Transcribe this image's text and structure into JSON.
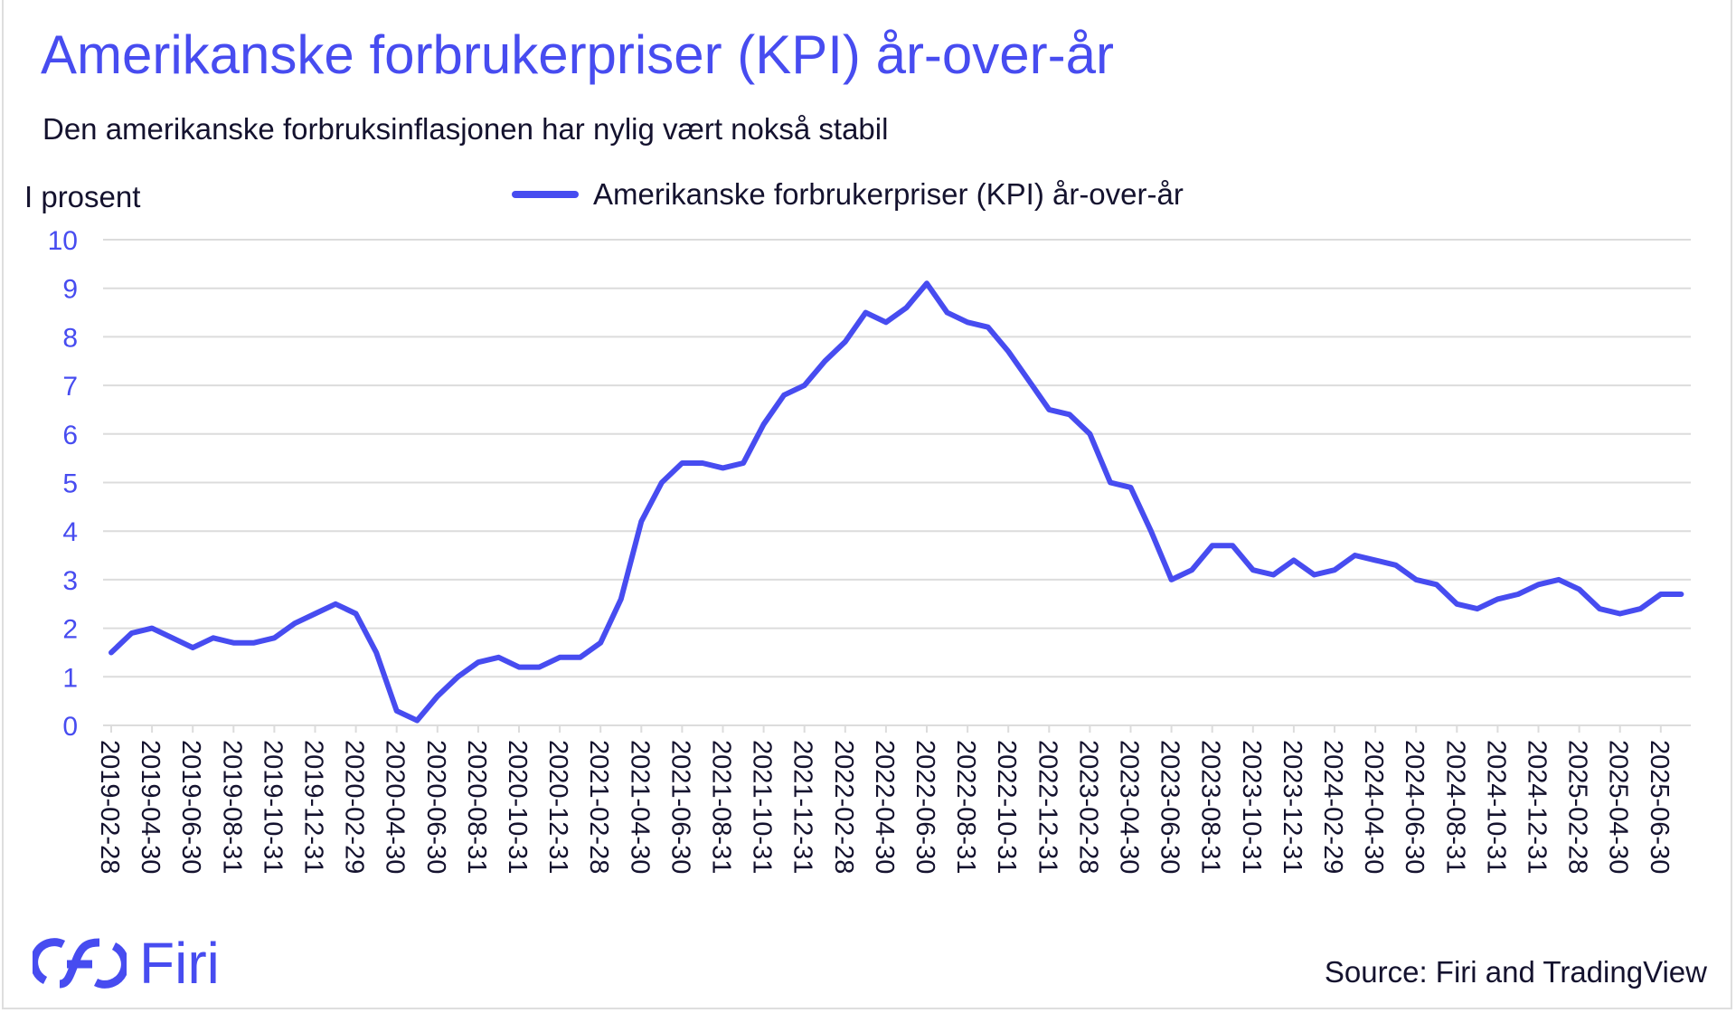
{
  "chart_data": {
    "type": "line",
    "title": "Amerikanske forbrukerpriser (KPI) år-over-år",
    "subtitle": "Den amerikanske forbruksinflasjonen har nylig vært nokså stabil",
    "ylabel": "I prosent",
    "xlabel": "",
    "ylim": [
      0,
      10
    ],
    "yticks": [
      "0",
      "1",
      "2",
      "3",
      "4",
      "5",
      "6",
      "7",
      "8",
      "9",
      "10"
    ],
    "grid": true,
    "legend_placement": "top-center",
    "xtick_labels": [
      "2019-02-28",
      "2019-04-30",
      "2019-06-30",
      "2019-08-31",
      "2019-10-31",
      "2019-12-31",
      "2020-02-29",
      "2020-04-30",
      "2020-06-30",
      "2020-08-31",
      "2020-10-31",
      "2020-12-31",
      "2021-02-28",
      "2021-04-30",
      "2021-06-30",
      "2021-08-31",
      "2021-10-31",
      "2021-12-31",
      "2022-02-28",
      "2022-04-30",
      "2022-06-30",
      "2022-08-31",
      "2022-10-31",
      "2022-12-31",
      "2023-02-28",
      "2023-04-30",
      "2023-06-30",
      "2023-08-31",
      "2023-10-31",
      "2023-12-31",
      "2024-02-29",
      "2024-04-30",
      "2024-06-30",
      "2024-08-31",
      "2024-10-31",
      "2024-12-31",
      "2025-02-28",
      "2025-04-30",
      "2025-06-30"
    ],
    "series": [
      {
        "name": "Amerikanske forbrukerpriser (KPI) år-over-år",
        "color": "#474cf0",
        "values": [
          1.5,
          1.9,
          2.0,
          1.8,
          1.6,
          1.8,
          1.7,
          1.7,
          1.8,
          2.1,
          2.3,
          2.5,
          2.3,
          1.5,
          0.3,
          0.1,
          0.6,
          1.0,
          1.3,
          1.4,
          1.2,
          1.2,
          1.4,
          1.4,
          1.7,
          2.6,
          4.2,
          5.0,
          5.4,
          5.4,
          5.3,
          5.4,
          6.2,
          6.8,
          7.0,
          7.5,
          7.9,
          8.5,
          8.3,
          8.6,
          9.1,
          8.5,
          8.3,
          8.2,
          7.7,
          7.1,
          6.5,
          6.4,
          6.0,
          5.0,
          4.9,
          4.0,
          3.0,
          3.2,
          3.7,
          3.7,
          3.2,
          3.1,
          3.4,
          3.1,
          3.2,
          3.5,
          3.4,
          3.3,
          3.0,
          2.9,
          2.5,
          2.4,
          2.6,
          2.7,
          2.9,
          3.0,
          2.8,
          2.4,
          2.3,
          2.4,
          2.7,
          2.7
        ]
      }
    ]
  },
  "logo": {
    "text": "Firi"
  },
  "source": "Source: Firi and TradingView"
}
